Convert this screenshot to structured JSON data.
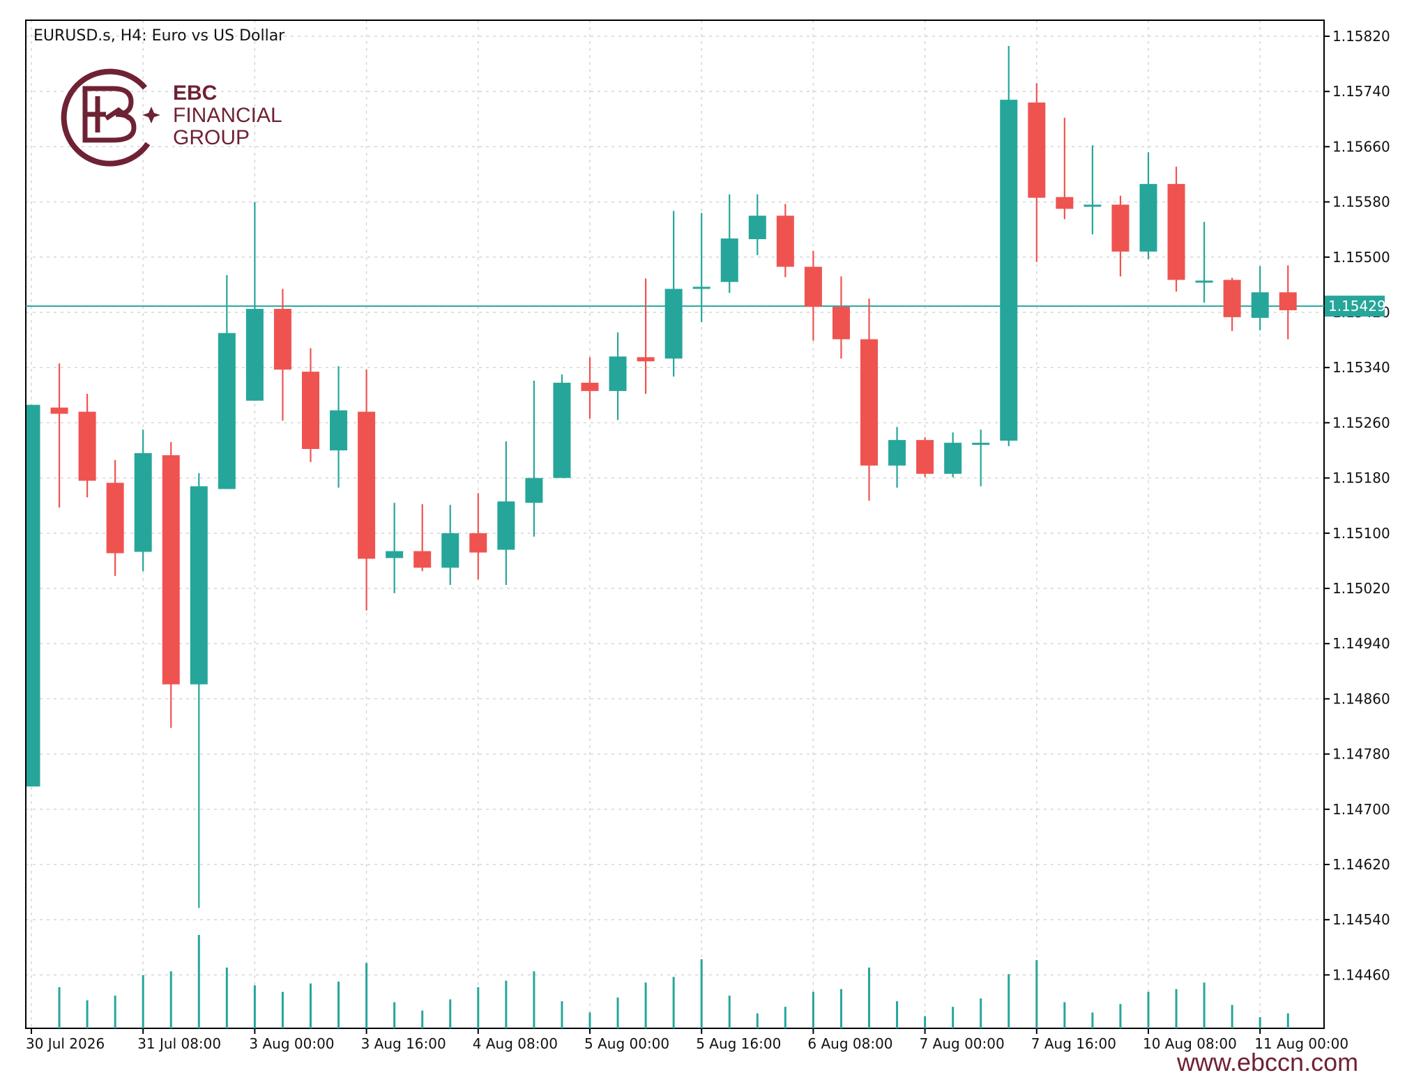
{
  "header": {
    "title": "EURUSD.s, H4:  Euro vs US Dollar"
  },
  "logo": {
    "line1": "EBC",
    "line2": "FINANCIAL",
    "line3": "GROUP"
  },
  "footer": {
    "url": "www.ebccn.com"
  },
  "colors": {
    "bull": "#26a69a",
    "bear": "#ef5350",
    "grid": "#d6d6d6",
    "brand": "#6e2233"
  },
  "current_price": {
    "label": "1.15429",
    "value": 1.15429
  },
  "chart_data": {
    "type": "candlestick",
    "title": "EURUSD.s, H4:  Euro vs US Dollar",
    "ylim": [
      1.1439,
      1.1585
    ],
    "y_ticks": [
      "1.15820",
      "1.15740",
      "1.15660",
      "1.15580",
      "1.15500",
      "1.15420",
      "1.15340",
      "1.15260",
      "1.15180",
      "1.15100",
      "1.15020",
      "1.14940",
      "1.14860",
      "1.14780",
      "1.14700",
      "1.14620",
      "1.14540",
      "1.14460"
    ],
    "x_ticks": [
      "30 Jul 2026",
      "31 Jul 08:00",
      "3 Aug 00:00",
      "3 Aug 16:00",
      "4 Aug 08:00",
      "5 Aug 00:00",
      "5 Aug 16:00",
      "6 Aug 08:00",
      "7 Aug 00:00",
      "7 Aug 16:00",
      "10 Aug 08:00",
      "11 Aug 00:00"
    ],
    "x_tick_bar_index": [
      0,
      4,
      8,
      12,
      16,
      20,
      24,
      28,
      32,
      36,
      40,
      44
    ],
    "grid": true,
    "volume_shown": true,
    "candles": [
      {
        "o": 1.14733,
        "h": 1.15286,
        "l": 1.14733,
        "c": 1.15286
      },
      {
        "o": 1.15282,
        "h": 1.15346,
        "l": 1.15137,
        "c": 1.15273
      },
      {
        "o": 1.15276,
        "h": 1.15302,
        "l": 1.15152,
        "c": 1.15176
      },
      {
        "o": 1.15173,
        "h": 1.15206,
        "l": 1.15038,
        "c": 1.15071
      },
      {
        "o": 1.15073,
        "h": 1.1525,
        "l": 1.15045,
        "c": 1.15216
      },
      {
        "o": 1.15213,
        "h": 1.15232,
        "l": 1.14818,
        "c": 1.14881
      },
      {
        "o": 1.14881,
        "h": 1.15187,
        "l": 1.14557,
        "c": 1.15168
      },
      {
        "o": 1.15164,
        "h": 1.15474,
        "l": 1.15164,
        "c": 1.1539
      },
      {
        "o": 1.15292,
        "h": 1.1558,
        "l": 1.15292,
        "c": 1.15425
      },
      {
        "o": 1.15425,
        "h": 1.15454,
        "l": 1.15263,
        "c": 1.15337
      },
      {
        "o": 1.15334,
        "h": 1.15368,
        "l": 1.15203,
        "c": 1.15222
      },
      {
        "o": 1.1522,
        "h": 1.15342,
        "l": 1.15166,
        "c": 1.15278
      },
      {
        "o": 1.15276,
        "h": 1.15337,
        "l": 1.14988,
        "c": 1.15063
      },
      {
        "o": 1.15064,
        "h": 1.15144,
        "l": 1.15013,
        "c": 1.15074
      },
      {
        "o": 1.15074,
        "h": 1.15142,
        "l": 1.15045,
        "c": 1.1505
      },
      {
        "o": 1.1505,
        "h": 1.15141,
        "l": 1.15025,
        "c": 1.151
      },
      {
        "o": 1.151,
        "h": 1.15158,
        "l": 1.15033,
        "c": 1.15072
      },
      {
        "o": 1.15076,
        "h": 1.15233,
        "l": 1.15025,
        "c": 1.15146
      },
      {
        "o": 1.15144,
        "h": 1.15321,
        "l": 1.15095,
        "c": 1.1518
      },
      {
        "o": 1.1518,
        "h": 1.1533,
        "l": 1.1518,
        "c": 1.15318
      },
      {
        "o": 1.15318,
        "h": 1.15355,
        "l": 1.15266,
        "c": 1.15306
      },
      {
        "o": 1.15306,
        "h": 1.15391,
        "l": 1.15264,
        "c": 1.15356
      },
      {
        "o": 1.15355,
        "h": 1.15469,
        "l": 1.15302,
        "c": 1.15349
      },
      {
        "o": 1.15353,
        "h": 1.15567,
        "l": 1.15327,
        "c": 1.15454
      },
      {
        "o": 1.15454,
        "h": 1.15564,
        "l": 1.15406,
        "c": 1.15457
      },
      {
        "o": 1.15464,
        "h": 1.15591,
        "l": 1.15448,
        "c": 1.15527
      },
      {
        "o": 1.15526,
        "h": 1.15591,
        "l": 1.15503,
        "c": 1.1556
      },
      {
        "o": 1.1556,
        "h": 1.15577,
        "l": 1.15471,
        "c": 1.15486
      },
      {
        "o": 1.15486,
        "h": 1.15509,
        "l": 1.15379,
        "c": 1.15428
      },
      {
        "o": 1.15428,
        "h": 1.15472,
        "l": 1.15353,
        "c": 1.15381
      },
      {
        "o": 1.15381,
        "h": 1.1544,
        "l": 1.15147,
        "c": 1.15198
      },
      {
        "o": 1.15198,
        "h": 1.15254,
        "l": 1.15166,
        "c": 1.15235
      },
      {
        "o": 1.15235,
        "h": 1.15239,
        "l": 1.15181,
        "c": 1.15186
      },
      {
        "o": 1.15186,
        "h": 1.15246,
        "l": 1.15181,
        "c": 1.15231
      },
      {
        "o": 1.15231,
        "h": 1.1525,
        "l": 1.15168,
        "c": 1.15231
      },
      {
        "o": 1.15234,
        "h": 1.15806,
        "l": 1.15226,
        "c": 1.15728
      },
      {
        "o": 1.15724,
        "h": 1.15752,
        "l": 1.15493,
        "c": 1.15586
      },
      {
        "o": 1.15587,
        "h": 1.15702,
        "l": 1.15555,
        "c": 1.1557
      },
      {
        "o": 1.15576,
        "h": 1.15662,
        "l": 1.15533,
        "c": 1.15576
      },
      {
        "o": 1.15576,
        "h": 1.15589,
        "l": 1.15472,
        "c": 1.15508
      },
      {
        "o": 1.15508,
        "h": 1.15652,
        "l": 1.15497,
        "c": 1.15606
      },
      {
        "o": 1.15606,
        "h": 1.15631,
        "l": 1.1545,
        "c": 1.15467
      },
      {
        "o": 1.15466,
        "h": 1.15551,
        "l": 1.15434,
        "c": 1.15466
      },
      {
        "o": 1.15467,
        "h": 1.1547,
        "l": 1.15393,
        "c": 1.15413
      },
      {
        "o": 1.15412,
        "h": 1.15487,
        "l": 1.15394,
        "c": 1.15449
      },
      {
        "o": 1.15449,
        "h": 1.15488,
        "l": 1.15381,
        "c": 1.15423
      }
    ],
    "volume_scale": [
      0,
      10
    ],
    "volume": [
      0,
      4.4,
      3.0,
      3.5,
      5.7,
      6.1,
      10,
      6.5,
      4.6,
      3.9,
      4.8,
      5.0,
      7.0,
      2.8,
      1.9,
      3.1,
      4.4,
      5.1,
      6.1,
      2.9,
      1.7,
      3.3,
      4.9,
      5.5,
      7.4,
      3.5,
      1.6,
      2.3,
      3.9,
      4.2,
      6.5,
      2.9,
      1.3,
      2.3,
      3.2,
      5.8,
      7.3,
      2.8,
      1.7,
      2.6,
      3.9,
      4.2,
      4.9,
      2.5,
      1.2,
      1.6
    ]
  }
}
